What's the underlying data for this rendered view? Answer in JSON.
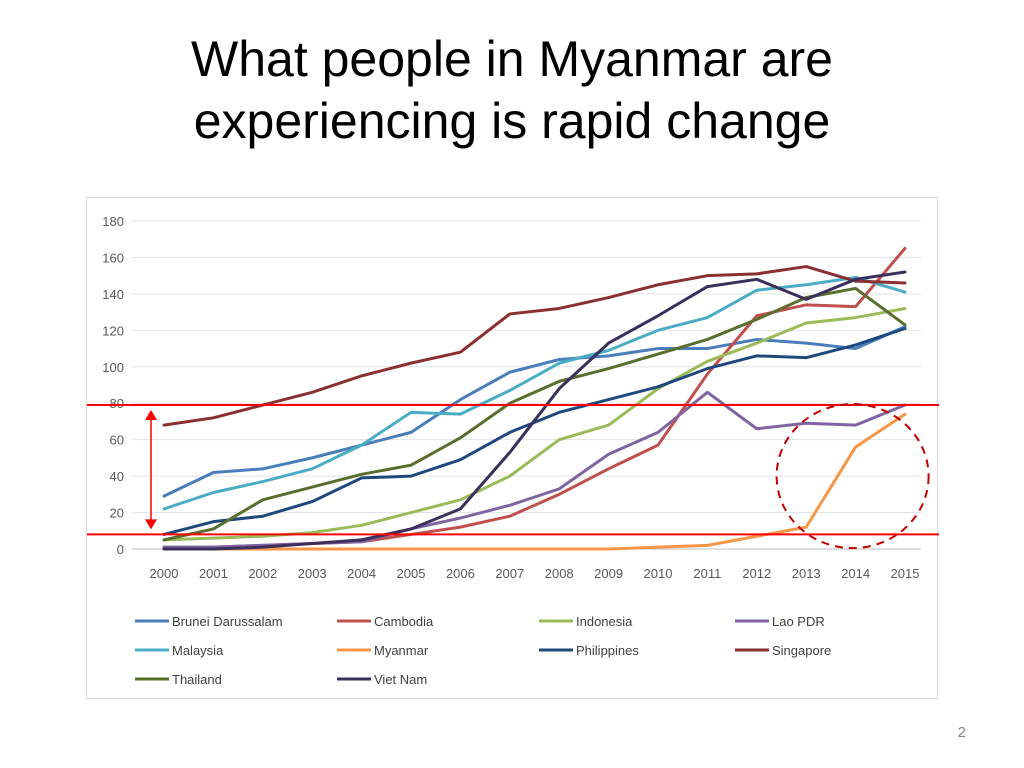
{
  "slide": {
    "title_line1": "What people in Myanmar are",
    "title_line2": "experiencing is rapid change",
    "page_number": "2"
  },
  "chart_data": {
    "type": "line",
    "title": "",
    "xlabel": "",
    "ylabel": "",
    "ylim": [
      0,
      180
    ],
    "yticks": [
      0,
      20,
      40,
      60,
      80,
      100,
      120,
      140,
      160,
      180
    ],
    "x": [
      "2000",
      "2001",
      "2002",
      "2003",
      "2004",
      "2005",
      "2006",
      "2007",
      "2008",
      "2009",
      "2010",
      "2011",
      "2012",
      "2013",
      "2014",
      "2015"
    ],
    "grid": "horizontal",
    "legend_position": "bottom",
    "series": [
      {
        "name": "Brunei Darussalam",
        "color": "#4a7ebb",
        "values": [
          29,
          42,
          44,
          50,
          57,
          64,
          82,
          97,
          104,
          106,
          110,
          110,
          115,
          113,
          110,
          122
        ]
      },
      {
        "name": "Cambodia",
        "color": "#c0504d",
        "values": [
          1,
          1,
          2,
          3,
          4,
          8,
          12,
          18,
          30,
          44,
          57,
          96,
          128,
          134,
          133,
          165
        ]
      },
      {
        "name": "Indonesia",
        "color": "#9bbb59",
        "values": [
          5,
          6,
          7,
          9,
          13,
          20,
          27,
          40,
          60,
          68,
          88,
          103,
          113,
          124,
          127,
          132
        ]
      },
      {
        "name": "Lao PDR",
        "color": "#8064a2",
        "values": [
          1,
          1,
          2,
          3,
          4,
          11,
          17,
          24,
          33,
          52,
          64,
          86,
          66,
          69,
          68,
          79
        ]
      },
      {
        "name": "Malaysia",
        "color": "#4bacc6",
        "values": [
          22,
          31,
          37,
          44,
          57,
          75,
          74,
          87,
          102,
          109,
          120,
          127,
          142,
          145,
          149,
          141
        ]
      },
      {
        "name": "Myanmar",
        "color": "#f79646",
        "values": [
          0,
          0,
          0,
          0,
          0,
          0,
          0,
          0,
          0,
          0,
          1,
          2,
          7,
          12,
          56,
          74
        ]
      },
      {
        "name": "Philippines",
        "color": "#1f497d",
        "values": [
          8,
          15,
          18,
          26,
          39,
          40,
          49,
          64,
          75,
          82,
          89,
          99,
          106,
          105,
          112,
          121
        ]
      },
      {
        "name": "Singapore",
        "color": "#8b3030",
        "values": [
          68,
          72,
          79,
          86,
          95,
          102,
          108,
          129,
          132,
          138,
          145,
          150,
          151,
          155,
          147,
          146
        ]
      },
      {
        "name": "Thailand",
        "color": "#5a6e2e",
        "values": [
          5,
          11,
          27,
          34,
          41,
          46,
          61,
          80,
          92,
          99,
          107,
          115,
          126,
          138,
          143,
          123
        ]
      },
      {
        "name": "Viet Nam",
        "color": "#3b2f5c",
        "values": [
          0,
          0,
          1,
          3,
          5,
          11,
          22,
          53,
          88,
          113,
          128,
          144,
          148,
          137,
          148,
          152
        ]
      }
    ],
    "annotations": {
      "reference_lines": [
        {
          "value": 79,
          "color": "#ff0000"
        },
        {
          "value": 8,
          "color": "#ff0000"
        }
      ],
      "range_arrow": {
        "from": 8,
        "to": 79,
        "color": "#ff0000"
      },
      "highlight_circle": {
        "center_x": "2014",
        "center_y": 40,
        "color": "#c00000",
        "style": "dashed"
      }
    }
  }
}
